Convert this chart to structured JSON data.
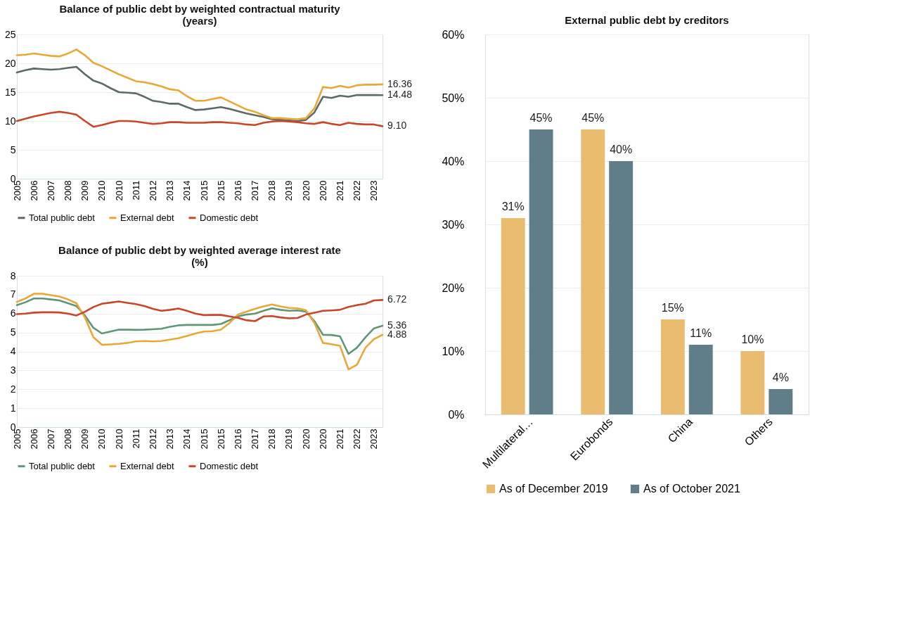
{
  "chart_data": [
    {
      "type": "line",
      "title": "Balance of public debt by weighted contractual maturity\n(years)",
      "categories": [
        "2005",
        null,
        "2006",
        null,
        "2007",
        null,
        "2008",
        null,
        "2009",
        null,
        "2010",
        null,
        "2010",
        null,
        "2011",
        null,
        "2012",
        null,
        "2013",
        null,
        "2014",
        null,
        "2015",
        null,
        "2015",
        null,
        "2016",
        null,
        "2017",
        null,
        "2018",
        null,
        "2019",
        null,
        "2020",
        null,
        "2020",
        null,
        "2021",
        null,
        "2022",
        null,
        "2023",
        null
      ],
      "series": [
        {
          "name": "Total public debt",
          "color": "#5b6b64",
          "values": [
            18.4,
            18.8,
            19.1,
            19.0,
            18.9,
            19.0,
            19.2,
            19.4,
            18.1,
            17.0,
            16.5,
            15.7,
            15.0,
            14.9,
            14.8,
            14.2,
            13.5,
            13.3,
            13.0,
            13.0,
            12.4,
            11.9,
            12.0,
            12.2,
            12.4,
            12.1,
            11.7,
            11.3,
            11.0,
            10.7,
            10.3,
            10.2,
            10.1,
            10.0,
            10.2,
            11.5,
            14.2,
            14.0,
            14.4,
            14.2,
            14.5,
            14.5,
            14.5,
            14.48
          ],
          "value_labels": [
            null,
            null,
            null,
            null,
            null,
            null,
            null,
            null,
            null,
            null,
            null,
            null,
            null,
            null,
            null,
            null,
            null,
            null,
            null,
            null,
            null,
            null,
            null,
            null,
            null,
            null,
            null,
            null,
            null,
            null,
            null,
            null,
            null,
            null,
            null,
            null,
            null,
            null,
            null,
            null,
            null,
            null,
            null,
            "14.48"
          ]
        },
        {
          "name": "External debt",
          "color": "#e8a838",
          "values": [
            21.4,
            21.5,
            21.7,
            21.5,
            21.3,
            21.2,
            21.7,
            22.4,
            21.4,
            20.1,
            19.5,
            18.8,
            18.1,
            17.5,
            16.9,
            16.7,
            16.4,
            16.0,
            15.5,
            15.3,
            14.3,
            13.5,
            13.5,
            13.8,
            14.1,
            13.4,
            12.7,
            12.0,
            11.6,
            11.0,
            10.5,
            10.5,
            10.4,
            10.3,
            10.5,
            12.2,
            15.9,
            15.7,
            16.1,
            15.8,
            16.2,
            16.3,
            16.3,
            16.36
          ],
          "value_labels": [
            null,
            null,
            null,
            null,
            null,
            null,
            null,
            null,
            null,
            null,
            null,
            null,
            null,
            null,
            null,
            null,
            null,
            null,
            null,
            null,
            null,
            null,
            null,
            null,
            null,
            null,
            null,
            null,
            null,
            null,
            null,
            null,
            null,
            null,
            null,
            null,
            null,
            null,
            null,
            null,
            null,
            null,
            null,
            "16.36"
          ]
        },
        {
          "name": "Domestic debt",
          "color": "#c8472b",
          "values": [
            10.0,
            10.4,
            10.8,
            11.1,
            11.4,
            11.6,
            11.4,
            11.1,
            10.0,
            9.0,
            9.3,
            9.7,
            10.0,
            10.0,
            9.9,
            9.7,
            9.5,
            9.6,
            9.8,
            9.8,
            9.7,
            9.7,
            9.7,
            9.8,
            9.8,
            9.7,
            9.6,
            9.4,
            9.3,
            9.7,
            9.9,
            10.0,
            9.9,
            9.8,
            9.6,
            9.5,
            9.8,
            9.5,
            9.3,
            9.7,
            9.5,
            9.4,
            9.4,
            9.1
          ],
          "value_labels": [
            null,
            null,
            null,
            null,
            null,
            null,
            null,
            null,
            null,
            null,
            null,
            null,
            null,
            null,
            null,
            null,
            null,
            null,
            null,
            null,
            null,
            null,
            null,
            null,
            null,
            null,
            null,
            null,
            null,
            null,
            null,
            null,
            null,
            null,
            null,
            null,
            null,
            null,
            null,
            null,
            null,
            null,
            null,
            "9.10"
          ]
        }
      ],
      "ylim": [
        0,
        25
      ],
      "yticks": [
        0,
        5,
        10,
        15,
        20,
        25
      ],
      "grid": "y",
      "legend": "bottom",
      "line_style": "solid"
    },
    {
      "type": "line",
      "title": "Balance of public debt by weighted average interest rate\n(%)",
      "categories": [
        "2005",
        null,
        "2006",
        null,
        "2007",
        null,
        "2008",
        null,
        "2009",
        null,
        "2010",
        null,
        "2010",
        null,
        "2011",
        null,
        "2012",
        null,
        "2013",
        null,
        "2014",
        null,
        "2015",
        null,
        "2015",
        null,
        "2016",
        null,
        "2017",
        null,
        "2018",
        null,
        "2019",
        null,
        "2020",
        null,
        "2020",
        null,
        "2021",
        null,
        "2022",
        null,
        "2023",
        null
      ],
      "series": [
        {
          "name": "Total public debt",
          "color": "#5e9677",
          "values": [
            6.45,
            6.6,
            6.8,
            6.8,
            6.75,
            6.7,
            6.55,
            6.4,
            5.9,
            5.25,
            4.95,
            5.05,
            5.15,
            5.15,
            5.14,
            5.15,
            5.17,
            5.2,
            5.3,
            5.38,
            5.4,
            5.4,
            5.4,
            5.4,
            5.45,
            5.65,
            5.85,
            5.95,
            6.0,
            6.15,
            6.28,
            6.2,
            6.15,
            6.17,
            6.1,
            5.6,
            4.88,
            4.87,
            4.8,
            3.87,
            4.2,
            4.75,
            5.22,
            5.36
          ],
          "value_labels": [
            null,
            null,
            null,
            null,
            null,
            null,
            null,
            null,
            null,
            null,
            null,
            null,
            null,
            null,
            null,
            null,
            null,
            null,
            null,
            null,
            null,
            null,
            null,
            null,
            null,
            null,
            null,
            null,
            null,
            null,
            null,
            null,
            null,
            null,
            null,
            null,
            null,
            null,
            null,
            null,
            null,
            null,
            null,
            "5.36"
          ]
        },
        {
          "name": "External debt",
          "color": "#e8a838",
          "values": [
            6.62,
            6.8,
            7.05,
            7.05,
            6.98,
            6.9,
            6.75,
            6.55,
            5.8,
            4.75,
            4.35,
            4.37,
            4.4,
            4.45,
            4.53,
            4.55,
            4.53,
            4.55,
            4.62,
            4.7,
            4.82,
            4.95,
            5.05,
            5.07,
            5.15,
            5.5,
            5.95,
            6.1,
            6.25,
            6.38,
            6.48,
            6.38,
            6.3,
            6.28,
            6.18,
            5.5,
            4.45,
            4.38,
            4.3,
            3.05,
            3.3,
            4.2,
            4.65,
            4.88
          ],
          "value_labels": [
            null,
            null,
            null,
            null,
            null,
            null,
            null,
            null,
            null,
            null,
            null,
            null,
            null,
            null,
            null,
            null,
            null,
            null,
            null,
            null,
            null,
            null,
            null,
            null,
            null,
            null,
            null,
            null,
            null,
            null,
            null,
            null,
            null,
            null,
            null,
            null,
            null,
            null,
            null,
            null,
            null,
            null,
            null,
            "4.88"
          ]
        },
        {
          "name": "Domestic debt",
          "color": "#c8472b",
          "values": [
            5.97,
            6.0,
            6.05,
            6.07,
            6.07,
            6.06,
            6.0,
            5.9,
            6.1,
            6.35,
            6.52,
            6.58,
            6.64,
            6.57,
            6.5,
            6.4,
            6.25,
            6.15,
            6.2,
            6.27,
            6.15,
            6.0,
            5.92,
            5.93,
            5.93,
            5.85,
            5.78,
            5.65,
            5.6,
            5.85,
            5.87,
            5.8,
            5.75,
            5.77,
            5.95,
            6.05,
            6.15,
            6.17,
            6.2,
            6.35,
            6.45,
            6.52,
            6.7,
            6.72
          ],
          "value_labels": [
            null,
            null,
            null,
            null,
            null,
            null,
            null,
            null,
            null,
            null,
            null,
            null,
            null,
            null,
            null,
            null,
            null,
            null,
            null,
            null,
            null,
            null,
            null,
            null,
            null,
            null,
            null,
            null,
            null,
            null,
            null,
            null,
            null,
            null,
            null,
            null,
            null,
            null,
            null,
            null,
            null,
            null,
            null,
            "6.72"
          ]
        }
      ],
      "ylim": [
        0,
        8
      ],
      "yticks": [
        0,
        1,
        2,
        3,
        4,
        5,
        6,
        7,
        8
      ],
      "grid": "y",
      "legend": "bottom",
      "line_style": "solid"
    },
    {
      "type": "bar",
      "title": "External public debt by creditors",
      "categories": [
        "Multilateral…",
        "Eurobonds",
        "China",
        "Others"
      ],
      "series": [
        {
          "name": "As of December 2019",
          "color": "#e9bc6f",
          "values": [
            31,
            45,
            15,
            10
          ],
          "value_labels": [
            "31%",
            "45%",
            "15%",
            "10%"
          ]
        },
        {
          "name": "As of October 2021",
          "color": "#5f7e89",
          "values": [
            45,
            40,
            11,
            4
          ],
          "value_labels": [
            "45%",
            "40%",
            "11%",
            "4%"
          ]
        }
      ],
      "ylim": [
        0,
        60
      ],
      "yticks": [
        {
          "value": 0,
          "label": "0%"
        },
        {
          "value": 10,
          "label": "10%"
        },
        {
          "value": 20,
          "label": "20%"
        },
        {
          "value": 30,
          "label": "30%"
        },
        {
          "value": 40,
          "label": "40%"
        },
        {
          "value": 50,
          "label": "50%"
        },
        {
          "value": 60,
          "label": "60%"
        }
      ],
      "grid": "y",
      "legend": "bottom"
    }
  ]
}
